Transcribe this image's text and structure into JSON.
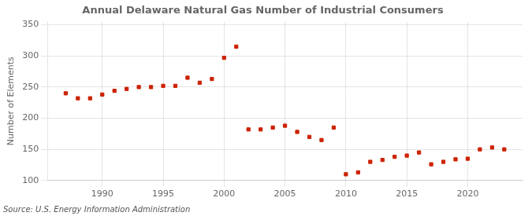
{
  "chart_data": {
    "type": "scatter",
    "title": "Annual Delaware Natural Gas Number of Industrial Consumers",
    "ylabel": "Number of Elements",
    "annotation": "Source: U.S. Energy Information Administration",
    "x": [
      1987,
      1988,
      1989,
      1990,
      1991,
      1992,
      1993,
      1994,
      1995,
      1996,
      1997,
      1998,
      1999,
      2000,
      2001,
      2002,
      2003,
      2004,
      2005,
      2006,
      2007,
      2008,
      2009,
      2010,
      2011,
      2012,
      2013,
      2014,
      2015,
      2016,
      2017,
      2018,
      2019,
      2020,
      2021,
      2022,
      2023
    ],
    "values": [
      240,
      232,
      232,
      238,
      244,
      247,
      250,
      250,
      252,
      252,
      265,
      257,
      263,
      297,
      315,
      182,
      182,
      185,
      188,
      178,
      170,
      165,
      185,
      110,
      113,
      130,
      133,
      138,
      140,
      145,
      126,
      130,
      134,
      135,
      150,
      153,
      150
    ],
    "color": "#cc2200",
    "marker": "square",
    "xlim": [
      1985.5,
      2024.5
    ],
    "ylim": [
      100,
      355
    ],
    "xticks": [
      1990,
      1995,
      2000,
      2005,
      2010,
      2015,
      2020
    ],
    "yticks": [
      100,
      150,
      200,
      250,
      300,
      350
    ],
    "grid": true
  }
}
